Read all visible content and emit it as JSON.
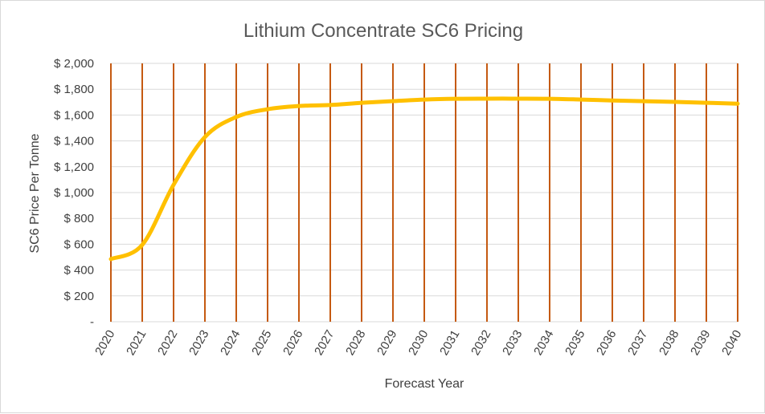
{
  "chart_data": {
    "type": "line",
    "title": "Lithium Concentrate SC6 Pricing",
    "xlabel": "Forecast Year",
    "ylabel": "SC6 Price Per Tonne",
    "categories": [
      "2020",
      "2021",
      "2022",
      "2023",
      "2024",
      "2025",
      "2026",
      "2027",
      "2028",
      "2029",
      "2030",
      "2031",
      "2032",
      "2033",
      "2034",
      "2035",
      "2036",
      "2037",
      "2038",
      "2039",
      "2040"
    ],
    "series": [
      {
        "name": "SC6 Price",
        "values": [
          485,
          595,
          1060,
          1430,
          1585,
          1645,
          1670,
          1678,
          1695,
          1708,
          1720,
          1726,
          1727,
          1727,
          1726,
          1720,
          1713,
          1707,
          1702,
          1695,
          1688
        ]
      }
    ],
    "ylim": [
      0,
      2000
    ],
    "yticks": [
      0,
      200,
      400,
      600,
      800,
      1000,
      1200,
      1400,
      1600,
      1800,
      2000
    ],
    "ytick_labels": [
      "-",
      "$ 200",
      "$ 400",
      "$ 600",
      "$ 800",
      "$ 1,000",
      "$ 1,200",
      "$ 1,400",
      "$ 1,600",
      "$ 1,800",
      "$ 2,000"
    ],
    "grid": true,
    "colors": {
      "line": "#FFC000",
      "vertical_grid": "#C55A11",
      "horizontal_grid": "#d9d9d9"
    }
  }
}
